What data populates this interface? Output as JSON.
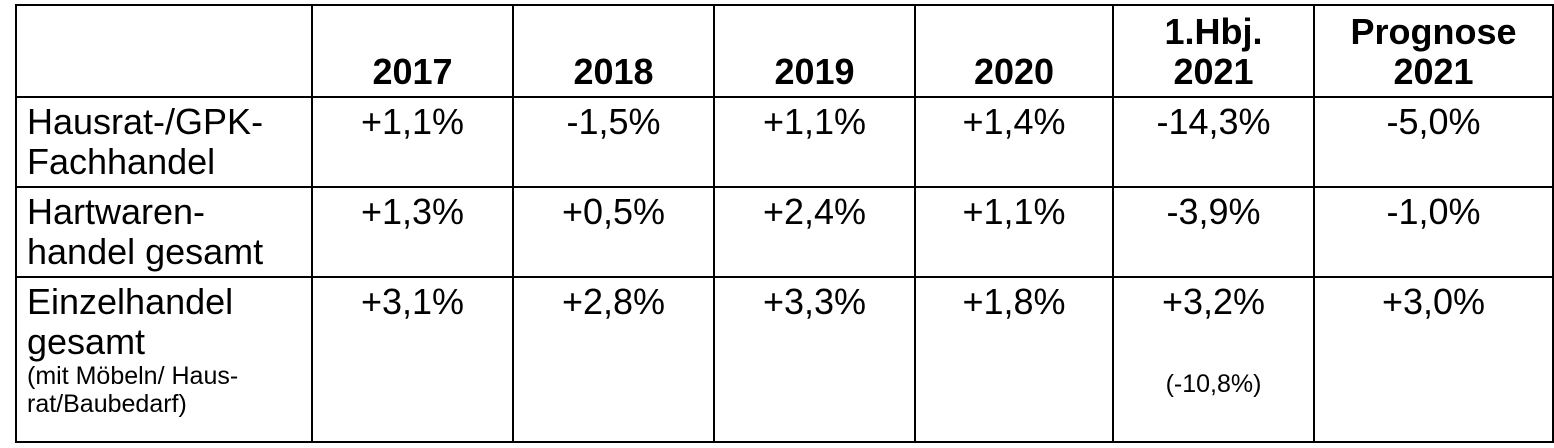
{
  "table": {
    "headers": [
      {
        "lines": [
          ""
        ]
      },
      {
        "lines": [
          "2017"
        ]
      },
      {
        "lines": [
          "2018"
        ]
      },
      {
        "lines": [
          "2019"
        ]
      },
      {
        "lines": [
          "2020"
        ]
      },
      {
        "lines": [
          "1.Hbj.",
          "2021"
        ]
      },
      {
        "lines": [
          "Prognose",
          "2021"
        ]
      }
    ],
    "rows": [
      {
        "label_lines": [
          "Hausrat-/GPK-",
          "Fachhandel"
        ],
        "label_note_lines": [],
        "values": [
          "+1,1%",
          "-1,5%",
          "+1,1%",
          "+1,4%",
          "-14,3%",
          "-5,0%"
        ]
      },
      {
        "label_lines": [
          "Hartwaren-",
          "handel gesamt"
        ],
        "label_note_lines": [],
        "values": [
          "+1,3%",
          "+0,5%",
          "+2,4%",
          "+1,1%",
          "-3,9%",
          "-1,0%"
        ]
      },
      {
        "label_lines": [
          "Einzelhandel",
          "gesamt"
        ],
        "label_note_lines": [
          "(mit Möbeln/ Haus-",
          "rat/Baubedarf)"
        ],
        "values": [
          "+3,1%",
          "+2,8%",
          "+3,3%",
          "+1,8%",
          "+3,2%",
          "+3,0%"
        ],
        "value_notes": [
          "",
          "",
          "",
          "",
          "(-10,8%)",
          ""
        ]
      }
    ]
  }
}
